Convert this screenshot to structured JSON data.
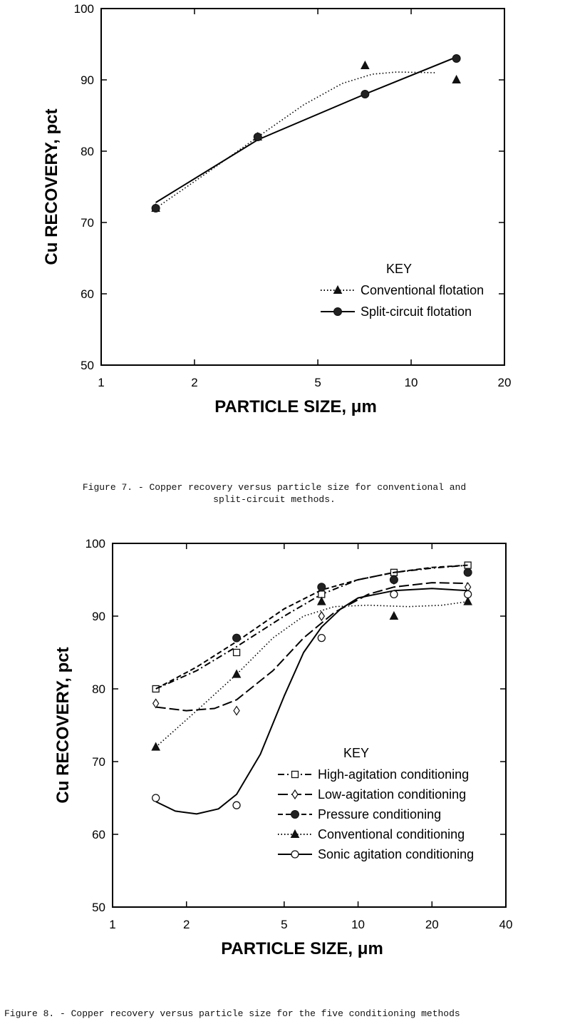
{
  "figures": [
    {
      "caption_line1": "Figure  7. - Copper recovery versus particle size for conventional and",
      "caption_line2": "split-circuit methods."
    },
    {
      "caption_line1": "Figure  8. - Copper recovery versus particle size for the five conditioning methods"
    }
  ],
  "chart_data": [
    {
      "type": "line",
      "xlabel": "PARTICLE SIZE, μm",
      "ylabel": "Cu RECOVERY, pct",
      "x_scale": "log",
      "xlim": [
        1,
        20
      ],
      "ylim": [
        50,
        100
      ],
      "x_ticks": [
        "1",
        "2",
        "5",
        "10",
        "20"
      ],
      "y_ticks": [
        "50",
        "60",
        "70",
        "80",
        "90",
        "100"
      ],
      "legend_title": "KEY",
      "legend_position": "bottom-right",
      "grid": false,
      "series": [
        {
          "name": "Conventional flotation",
          "marker": "triangle",
          "line": "dotted",
          "points": [
            [
              1.5,
              72
            ],
            [
              3.2,
              82
            ],
            [
              7.1,
              92
            ],
            [
              14,
              90
            ]
          ],
          "curve": [
            [
              1.5,
              72
            ],
            [
              2.2,
              77
            ],
            [
              3.2,
              82
            ],
            [
              4.5,
              86.5
            ],
            [
              6,
              89.5
            ],
            [
              7.5,
              90.8
            ],
            [
              9,
              91.1
            ],
            [
              12,
              91
            ]
          ]
        },
        {
          "name": "Split-circuit flotation",
          "marker": "filled-circle",
          "line": "solid",
          "points": [
            [
              1.5,
              72
            ],
            [
              3.2,
              82
            ],
            [
              7.1,
              88
            ],
            [
              14,
              93
            ]
          ],
          "curve": [
            [
              1.5,
              72.8
            ],
            [
              3.2,
              81.6
            ],
            [
              7.1,
              88
            ],
            [
              14,
              93.2
            ]
          ]
        }
      ]
    },
    {
      "type": "line",
      "xlabel": "PARTICLE SIZE, μm",
      "ylabel": "Cu RECOVERY, pct",
      "x_scale": "log",
      "xlim": [
        1,
        40
      ],
      "ylim": [
        50,
        100
      ],
      "x_ticks": [
        "1",
        "2",
        "5",
        "10",
        "20",
        "40"
      ],
      "y_ticks": [
        "50",
        "60",
        "70",
        "80",
        "90",
        "100"
      ],
      "legend_title": "KEY",
      "legend_position": "bottom-right",
      "grid": false,
      "series": [
        {
          "name": "High-agitation conditioning",
          "marker": "square",
          "line": "dash-dot",
          "points": [
            [
              1.5,
              80
            ],
            [
              3.2,
              85
            ],
            [
              7.1,
              93
            ],
            [
              14,
              96
            ],
            [
              28,
              97
            ]
          ],
          "curve": [
            [
              1.5,
              80
            ],
            [
              2.2,
              82.5
            ],
            [
              3.2,
              85.8
            ],
            [
              5,
              90
            ],
            [
              7.1,
              93
            ],
            [
              10,
              95
            ],
            [
              14,
              96
            ],
            [
              20,
              96.6
            ],
            [
              28,
              97
            ]
          ]
        },
        {
          "name": "Low-agitation conditioning",
          "marker": "diamond",
          "line": "long-dash",
          "points": [
            [
              1.5,
              78
            ],
            [
              3.2,
              77
            ],
            [
              7.1,
              90
            ],
            [
              14,
              95
            ],
            [
              28,
              94
            ]
          ],
          "curve": [
            [
              1.5,
              77.5
            ],
            [
              2,
              77
            ],
            [
              2.6,
              77.3
            ],
            [
              3.2,
              78.5
            ],
            [
              4.5,
              82.5
            ],
            [
              6,
              87
            ],
            [
              8,
              90.5
            ],
            [
              11,
              93
            ],
            [
              14,
              94
            ],
            [
              20,
              94.6
            ],
            [
              28,
              94.5
            ]
          ]
        },
        {
          "name": "Pressure conditioning",
          "marker": "filled-circle",
          "line": "dashed",
          "points": [
            [
              3.2,
              87
            ],
            [
              7.1,
              94
            ],
            [
              14,
              95
            ],
            [
              28,
              96
            ]
          ],
          "curve": [
            [
              1.5,
              80
            ],
            [
              2.2,
              83
            ],
            [
              3.2,
              86.5
            ],
            [
              5,
              91
            ],
            [
              7.1,
              93.6
            ],
            [
              10,
              95
            ],
            [
              14,
              96
            ],
            [
              20,
              96.7
            ],
            [
              28,
              97
            ]
          ]
        },
        {
          "name": "Conventional conditioning",
          "marker": "triangle",
          "line": "dotted",
          "points": [
            [
              1.5,
              72
            ],
            [
              3.2,
              82
            ],
            [
              7.1,
              92
            ],
            [
              14,
              90
            ],
            [
              28,
              92
            ]
          ],
          "curve": [
            [
              1.5,
              72
            ],
            [
              2.2,
              77
            ],
            [
              3.2,
              82
            ],
            [
              4.5,
              87
            ],
            [
              6,
              90
            ],
            [
              8,
              91.3
            ],
            [
              11,
              91.5
            ],
            [
              16,
              91.3
            ],
            [
              22,
              91.5
            ],
            [
              28,
              92
            ]
          ]
        },
        {
          "name": "Sonic agitation conditioning",
          "marker": "open-circle",
          "line": "solid",
          "points": [
            [
              1.5,
              65
            ],
            [
              3.2,
              64
            ],
            [
              7.1,
              87
            ],
            [
              14,
              93
            ],
            [
              28,
              93
            ]
          ],
          "curve": [
            [
              1.5,
              64.5
            ],
            [
              1.8,
              63.2
            ],
            [
              2.2,
              62.8
            ],
            [
              2.7,
              63.5
            ],
            [
              3.2,
              65.5
            ],
            [
              4,
              71
            ],
            [
              5,
              79
            ],
            [
              6,
              85
            ],
            [
              7.1,
              88.5
            ],
            [
              8.5,
              91
            ],
            [
              10,
              92.5
            ],
            [
              14,
              93.5
            ],
            [
              20,
              93.8
            ],
            [
              28,
              93.5
            ]
          ]
        }
      ]
    }
  ]
}
